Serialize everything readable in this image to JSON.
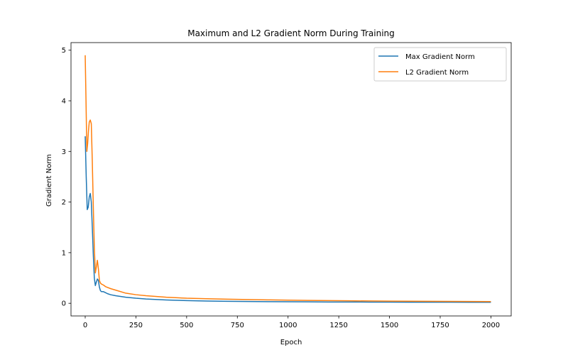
{
  "chart_data": {
    "type": "line",
    "title": "Maximum and L2 Gradient Norm During Training",
    "xlabel": "Epoch",
    "ylabel": "Gradient Norm",
    "xlim": [
      -70,
      2100
    ],
    "ylim": [
      -0.25,
      5.15
    ],
    "xticks": [
      0,
      250,
      500,
      750,
      1000,
      1250,
      1500,
      1750,
      2000
    ],
    "yticks": [
      0,
      1,
      2,
      3,
      4,
      5
    ],
    "grid": false,
    "legend_position": "top-right",
    "series": [
      {
        "name": "Max Gradient Norm",
        "color": "#1f77b4",
        "x": [
          0,
          5,
          10,
          15,
          20,
          25,
          30,
          35,
          40,
          45,
          50,
          55,
          60,
          65,
          70,
          75,
          80,
          90,
          100,
          110,
          125,
          150,
          200,
          250,
          300,
          400,
          500,
          600,
          700,
          800,
          900,
          1000,
          1100,
          1200,
          1300,
          1400,
          1500,
          1600,
          1700,
          1800,
          1900,
          2000
        ],
        "y": [
          3.3,
          2.5,
          1.85,
          1.9,
          2.1,
          2.17,
          2.0,
          1.5,
          0.95,
          0.5,
          0.35,
          0.42,
          0.48,
          0.45,
          0.32,
          0.25,
          0.23,
          0.23,
          0.21,
          0.19,
          0.17,
          0.15,
          0.12,
          0.1,
          0.085,
          0.065,
          0.053,
          0.045,
          0.04,
          0.035,
          0.032,
          0.03,
          0.028,
          0.026,
          0.025,
          0.024,
          0.023,
          0.022,
          0.021,
          0.021,
          0.02,
          0.02
        ]
      },
      {
        "name": "L2 Gradient Norm",
        "color": "#ff7f0e",
        "x": [
          0,
          4,
          8,
          12,
          16,
          20,
          25,
          30,
          35,
          40,
          45,
          50,
          55,
          60,
          65,
          70,
          75,
          80,
          90,
          100,
          125,
          150,
          200,
          250,
          300,
          400,
          500,
          600,
          700,
          800,
          900,
          1000,
          1100,
          1200,
          1300,
          1400,
          1500,
          1600,
          1700,
          1800,
          1900,
          2000
        ],
        "y": [
          4.9,
          4.0,
          3.0,
          3.15,
          3.4,
          3.58,
          3.62,
          3.55,
          2.8,
          1.9,
          1.1,
          0.6,
          0.72,
          0.85,
          0.68,
          0.45,
          0.4,
          0.38,
          0.36,
          0.33,
          0.29,
          0.26,
          0.2,
          0.17,
          0.15,
          0.12,
          0.1,
          0.09,
          0.082,
          0.075,
          0.068,
          0.062,
          0.057,
          0.053,
          0.049,
          0.046,
          0.043,
          0.041,
          0.039,
          0.037,
          0.035,
          0.034
        ]
      }
    ]
  }
}
